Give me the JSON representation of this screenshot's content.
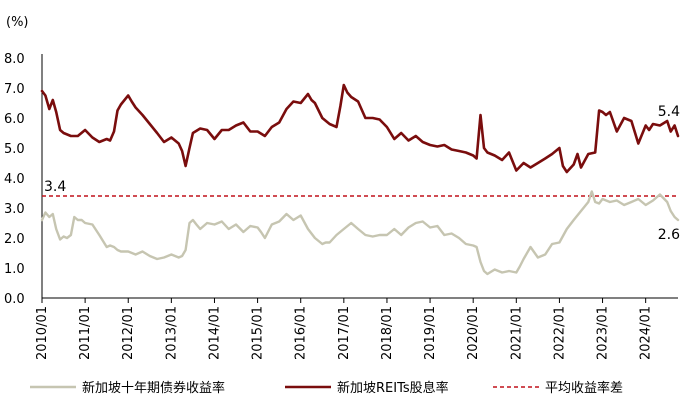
{
  "chart_data": {
    "type": "line",
    "unit_label": "(%)",
    "ylim": [
      0,
      8
    ],
    "yticks": [
      "0.0",
      "1.0",
      "2.0",
      "3.0",
      "4.0",
      "5.0",
      "6.0",
      "7.0",
      "8.0"
    ],
    "xticks": [
      "2010/01",
      "2011/01",
      "2012/01",
      "2013/01",
      "2014/01",
      "2015/01",
      "2016/01",
      "2017/01",
      "2018/01",
      "2019/01",
      "2020/01",
      "2021/01",
      "2022/01",
      "2023/01",
      "2024/01"
    ],
    "x_start_year": 2010,
    "x_end_year": 2024.75,
    "grid": false,
    "legend_position": "bottom",
    "colors": {
      "bond": "#c6c5b1",
      "reits": "#7a0d0d",
      "avg": "#c0111a"
    },
    "series": [
      {
        "name": "新加坡十年期债券收益率",
        "key": "bond",
        "x": [
          2010.0,
          2010.08,
          2010.17,
          2010.25,
          2010.33,
          2010.42,
          2010.5,
          2010.58,
          2010.67,
          2010.75,
          2010.83,
          2010.92,
          2011.0,
          2011.17,
          2011.33,
          2011.5,
          2011.58,
          2011.67,
          2011.75,
          2011.83,
          2012.0,
          2012.17,
          2012.33,
          2012.5,
          2012.67,
          2012.83,
          2013.0,
          2013.17,
          2013.25,
          2013.33,
          2013.42,
          2013.5,
          2013.58,
          2013.67,
          2013.83,
          2014.0,
          2014.17,
          2014.33,
          2014.5,
          2014.67,
          2014.83,
          2015.0,
          2015.08,
          2015.17,
          2015.33,
          2015.5,
          2015.67,
          2015.83,
          2016.0,
          2016.17,
          2016.33,
          2016.5,
          2016.58,
          2016.67,
          2016.83,
          2017.0,
          2017.17,
          2017.33,
          2017.5,
          2017.67,
          2017.83,
          2018.0,
          2018.17,
          2018.33,
          2018.5,
          2018.67,
          2018.83,
          2019.0,
          2019.17,
          2019.33,
          2019.5,
          2019.67,
          2019.83,
          2020.0,
          2020.08,
          2020.17,
          2020.25,
          2020.33,
          2020.5,
          2020.67,
          2020.83,
          2021.0,
          2021.08,
          2021.17,
          2021.33,
          2021.5,
          2021.67,
          2021.83,
          2022.0,
          2022.17,
          2022.33,
          2022.5,
          2022.67,
          2022.75,
          2022.83,
          2022.92,
          2023.0,
          2023.17,
          2023.33,
          2023.5,
          2023.67,
          2023.83,
          2024.0,
          2024.17,
          2024.33,
          2024.5,
          2024.58,
          2024.67,
          2024.75
        ],
        "values": [
          2.6,
          2.85,
          2.7,
          2.8,
          2.3,
          1.95,
          2.05,
          2.0,
          2.1,
          2.7,
          2.6,
          2.6,
          2.5,
          2.45,
          2.1,
          1.7,
          1.75,
          1.7,
          1.6,
          1.55,
          1.55,
          1.45,
          1.55,
          1.4,
          1.3,
          1.35,
          1.45,
          1.35,
          1.4,
          1.6,
          2.5,
          2.6,
          2.45,
          2.3,
          2.5,
          2.45,
          2.55,
          2.3,
          2.45,
          2.2,
          2.4,
          2.35,
          2.2,
          2.0,
          2.45,
          2.55,
          2.8,
          2.6,
          2.75,
          2.3,
          2.0,
          1.8,
          1.85,
          1.85,
          2.1,
          2.3,
          2.5,
          2.3,
          2.1,
          2.05,
          2.1,
          2.1,
          2.3,
          2.1,
          2.35,
          2.5,
          2.55,
          2.35,
          2.4,
          2.1,
          2.15,
          2.0,
          1.8,
          1.75,
          1.7,
          1.2,
          0.9,
          0.8,
          0.95,
          0.85,
          0.9,
          0.85,
          1.05,
          1.3,
          1.7,
          1.35,
          1.45,
          1.8,
          1.85,
          2.3,
          2.6,
          2.9,
          3.2,
          3.55,
          3.2,
          3.15,
          3.3,
          3.2,
          3.25,
          3.1,
          3.2,
          3.3,
          3.1,
          3.25,
          3.45,
          3.2,
          2.9,
          2.7,
          2.6
        ]
      },
      {
        "name": "新加坡REITs股息率",
        "key": "reits",
        "x": [
          2010.0,
          2010.08,
          2010.17,
          2010.25,
          2010.33,
          2010.42,
          2010.5,
          2010.67,
          2010.83,
          2011.0,
          2011.17,
          2011.33,
          2011.5,
          2011.58,
          2011.67,
          2011.75,
          2011.83,
          2012.0,
          2012.08,
          2012.17,
          2012.33,
          2012.5,
          2012.67,
          2012.83,
          2013.0,
          2013.17,
          2013.25,
          2013.33,
          2013.42,
          2013.5,
          2013.67,
          2013.83,
          2014.0,
          2014.17,
          2014.33,
          2014.5,
          2014.67,
          2014.83,
          2015.0,
          2015.17,
          2015.33,
          2015.5,
          2015.67,
          2015.83,
          2016.0,
          2016.17,
          2016.25,
          2016.33,
          2016.5,
          2016.67,
          2016.83,
          2016.92,
          2017.0,
          2017.08,
          2017.17,
          2017.33,
          2017.5,
          2017.67,
          2017.83,
          2018.0,
          2018.17,
          2018.33,
          2018.5,
          2018.67,
          2018.83,
          2019.0,
          2019.17,
          2019.33,
          2019.5,
          2019.67,
          2019.83,
          2020.0,
          2020.08,
          2020.17,
          2020.25,
          2020.33,
          2020.5,
          2020.67,
          2020.83,
          2021.0,
          2021.17,
          2021.33,
          2021.5,
          2021.67,
          2021.83,
          2022.0,
          2022.08,
          2022.17,
          2022.33,
          2022.42,
          2022.5,
          2022.67,
          2022.83,
          2022.92,
          2023.0,
          2023.08,
          2023.17,
          2023.33,
          2023.5,
          2023.67,
          2023.83,
          2024.0,
          2024.08,
          2024.17,
          2024.33,
          2024.5,
          2024.58,
          2024.67,
          2024.75
        ],
        "values": [
          6.9,
          6.75,
          6.3,
          6.6,
          6.2,
          5.6,
          5.5,
          5.4,
          5.4,
          5.6,
          5.35,
          5.2,
          5.3,
          5.25,
          5.55,
          6.25,
          6.45,
          6.75,
          6.55,
          6.35,
          6.1,
          5.8,
          5.5,
          5.2,
          5.35,
          5.15,
          4.9,
          4.4,
          5.0,
          5.5,
          5.65,
          5.6,
          5.3,
          5.6,
          5.6,
          5.75,
          5.85,
          5.55,
          5.55,
          5.4,
          5.7,
          5.85,
          6.3,
          6.55,
          6.5,
          6.8,
          6.6,
          6.5,
          6.0,
          5.8,
          5.7,
          6.4,
          7.1,
          6.85,
          6.7,
          6.55,
          6.0,
          6.0,
          5.95,
          5.7,
          5.3,
          5.5,
          5.25,
          5.4,
          5.2,
          5.1,
          5.05,
          5.1,
          4.95,
          4.9,
          4.85,
          4.75,
          4.65,
          6.1,
          5.0,
          4.85,
          4.75,
          4.6,
          4.85,
          4.25,
          4.5,
          4.35,
          4.5,
          4.65,
          4.8,
          5.0,
          4.4,
          4.2,
          4.45,
          4.8,
          4.35,
          4.8,
          4.85,
          6.25,
          6.2,
          6.1,
          6.2,
          5.55,
          6.0,
          5.9,
          5.15,
          5.75,
          5.6,
          5.8,
          5.75,
          5.9,
          5.55,
          5.75,
          5.4
        ]
      },
      {
        "name": "平均收益率差",
        "key": "avg",
        "constant": 3.4
      }
    ],
    "annotations": [
      {
        "text": "3.4",
        "at": "avg-start"
      },
      {
        "text": "5.4",
        "at": "reits-end"
      },
      {
        "text": "2.6",
        "at": "bond-end"
      }
    ]
  }
}
